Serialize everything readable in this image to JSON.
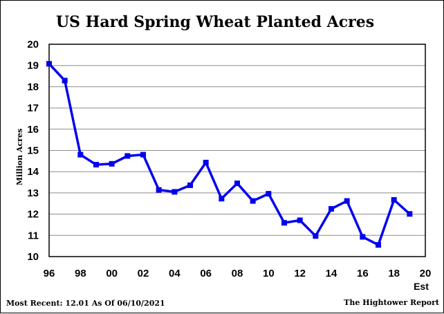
{
  "chart_data": {
    "type": "line",
    "title": "US Hard Spring Wheat Planted Acres",
    "ylabel": "Million Acres",
    "xlabel": "",
    "ylim": [
      10,
      20
    ],
    "yticks": [
      "10",
      "11",
      "12",
      "13",
      "14",
      "15",
      "16",
      "17",
      "18",
      "19",
      "20"
    ],
    "xlim": [
      1996,
      2020
    ],
    "xticks": [
      "96",
      "98",
      "00",
      "02",
      "04",
      "06",
      "08",
      "10",
      "12",
      "14",
      "16",
      "18",
      "20"
    ],
    "xtick_values": [
      1996,
      1998,
      2000,
      2002,
      2004,
      2006,
      2008,
      2010,
      2012,
      2014,
      2016,
      2018,
      2020
    ],
    "x_extra_label": "Est",
    "grid": true,
    "series": [
      {
        "color": "#0000ee",
        "x": [
          1996,
          1997,
          1998,
          1999,
          2000,
          2001,
          2002,
          2003,
          2004,
          2005,
          2006,
          2007,
          2008,
          2009,
          2010,
          2011,
          2012,
          2013,
          2014,
          2015,
          2016,
          2017,
          2018,
          2019
        ],
        "y": [
          19.08,
          18.29,
          14.8,
          14.33,
          14.37,
          14.74,
          14.8,
          13.14,
          13.05,
          13.36,
          14.43,
          12.73,
          13.45,
          12.62,
          12.96,
          11.59,
          11.71,
          10.97,
          12.25,
          12.62,
          10.93,
          10.55,
          12.67,
          12.01
        ]
      }
    ],
    "footer_left": "Most Recent: 12.01 As Of 06/10/2021",
    "footer_right": "The Hightower Report"
  }
}
